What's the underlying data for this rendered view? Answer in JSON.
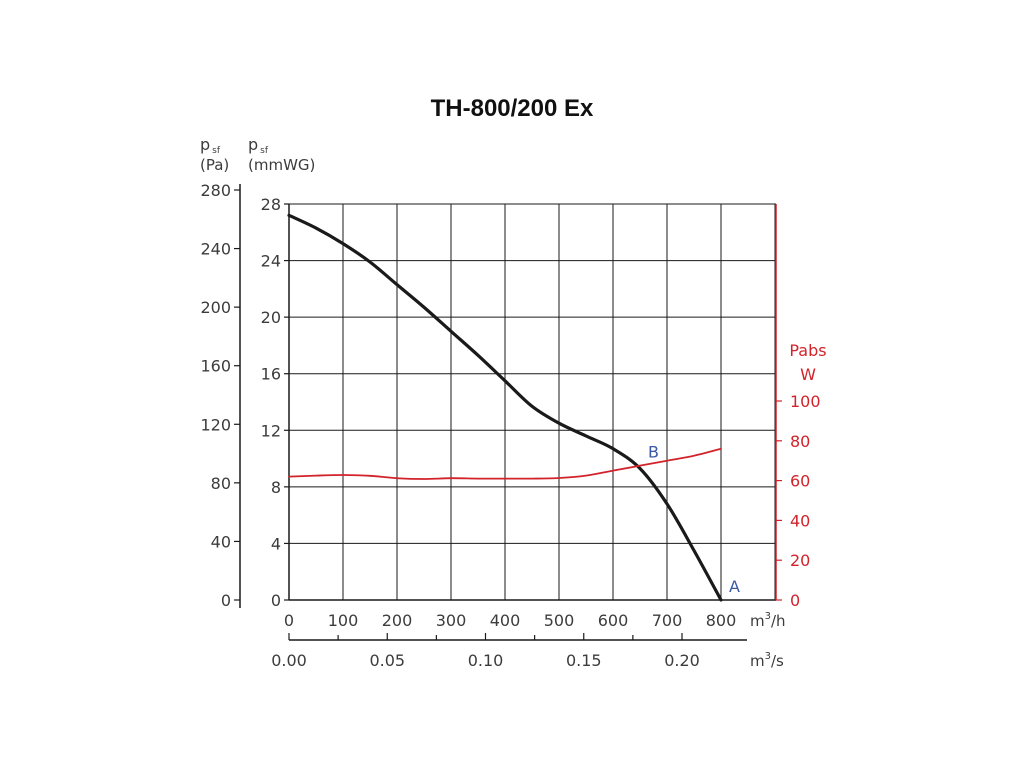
{
  "chart_data": {
    "type": "line",
    "title": "TH-800/200 Ex",
    "axes": {
      "x_primary": {
        "unit_label": "m",
        "unit_sup": "3",
        "unit_tail": "/h",
        "range": [
          0,
          900
        ],
        "ticks": [
          "0",
          "100",
          "200",
          "300",
          "400",
          "500",
          "600",
          "700",
          "800"
        ]
      },
      "x_secondary": {
        "unit_label": "m",
        "unit_sup": "3",
        "unit_tail": "/s",
        "ticks": [
          "0.00",
          "0.05",
          "0.10",
          "0.15",
          "0.20"
        ]
      },
      "y_left_outer": {
        "label_main": "p",
        "label_sub": "sf",
        "unit": "(Pa)",
        "range": [
          0,
          280
        ],
        "ticks": [
          "0",
          "40",
          "80",
          "120",
          "160",
          "200",
          "240",
          "280"
        ]
      },
      "y_left_inner": {
        "label_main": "p",
        "label_sub": "sf",
        "unit": "(mmWG)",
        "range": [
          0,
          28
        ],
        "ticks": [
          "0",
          "4",
          "8",
          "12",
          "16",
          "20",
          "24",
          "28"
        ]
      },
      "y_right": {
        "label": "Pabs",
        "unit": "W",
        "range": [
          0,
          100
        ],
        "ticks": [
          "0",
          "20",
          "40",
          "60",
          "80",
          "100"
        ],
        "color": "#d2232a"
      }
    },
    "grid": true,
    "series": [
      {
        "axis": "y_left_inner",
        "color": "#1a1a1a",
        "x": [
          0,
          50,
          100,
          150,
          200,
          250,
          300,
          350,
          400,
          450,
          500,
          550,
          600,
          650,
          700,
          750,
          800
        ],
        "y": [
          27.2,
          26.3,
          25.2,
          23.9,
          22.3,
          20.7,
          19.0,
          17.3,
          15.5,
          13.7,
          12.5,
          11.6,
          10.7,
          9.3,
          6.8,
          3.5,
          0
        ]
      },
      {
        "axis": "y_right",
        "color": "#d2232a",
        "x": [
          0,
          50,
          100,
          150,
          200,
          250,
          300,
          350,
          400,
          450,
          500,
          550,
          600,
          650,
          700,
          750,
          800
        ],
        "y": [
          62.0,
          62.5,
          62.8,
          62.4,
          61.2,
          60.8,
          61.2,
          61.0,
          61.0,
          61.0,
          61.3,
          62.5,
          65.0,
          67.5,
          70.0,
          72.5,
          76.0
        ]
      }
    ],
    "annotations": [
      {
        "text": "A",
        "x": 800,
        "y": 0,
        "color": "#3a57a8"
      },
      {
        "text": "B",
        "x": 650,
        "y": 9.5,
        "color": "#3a57a8"
      }
    ]
  }
}
